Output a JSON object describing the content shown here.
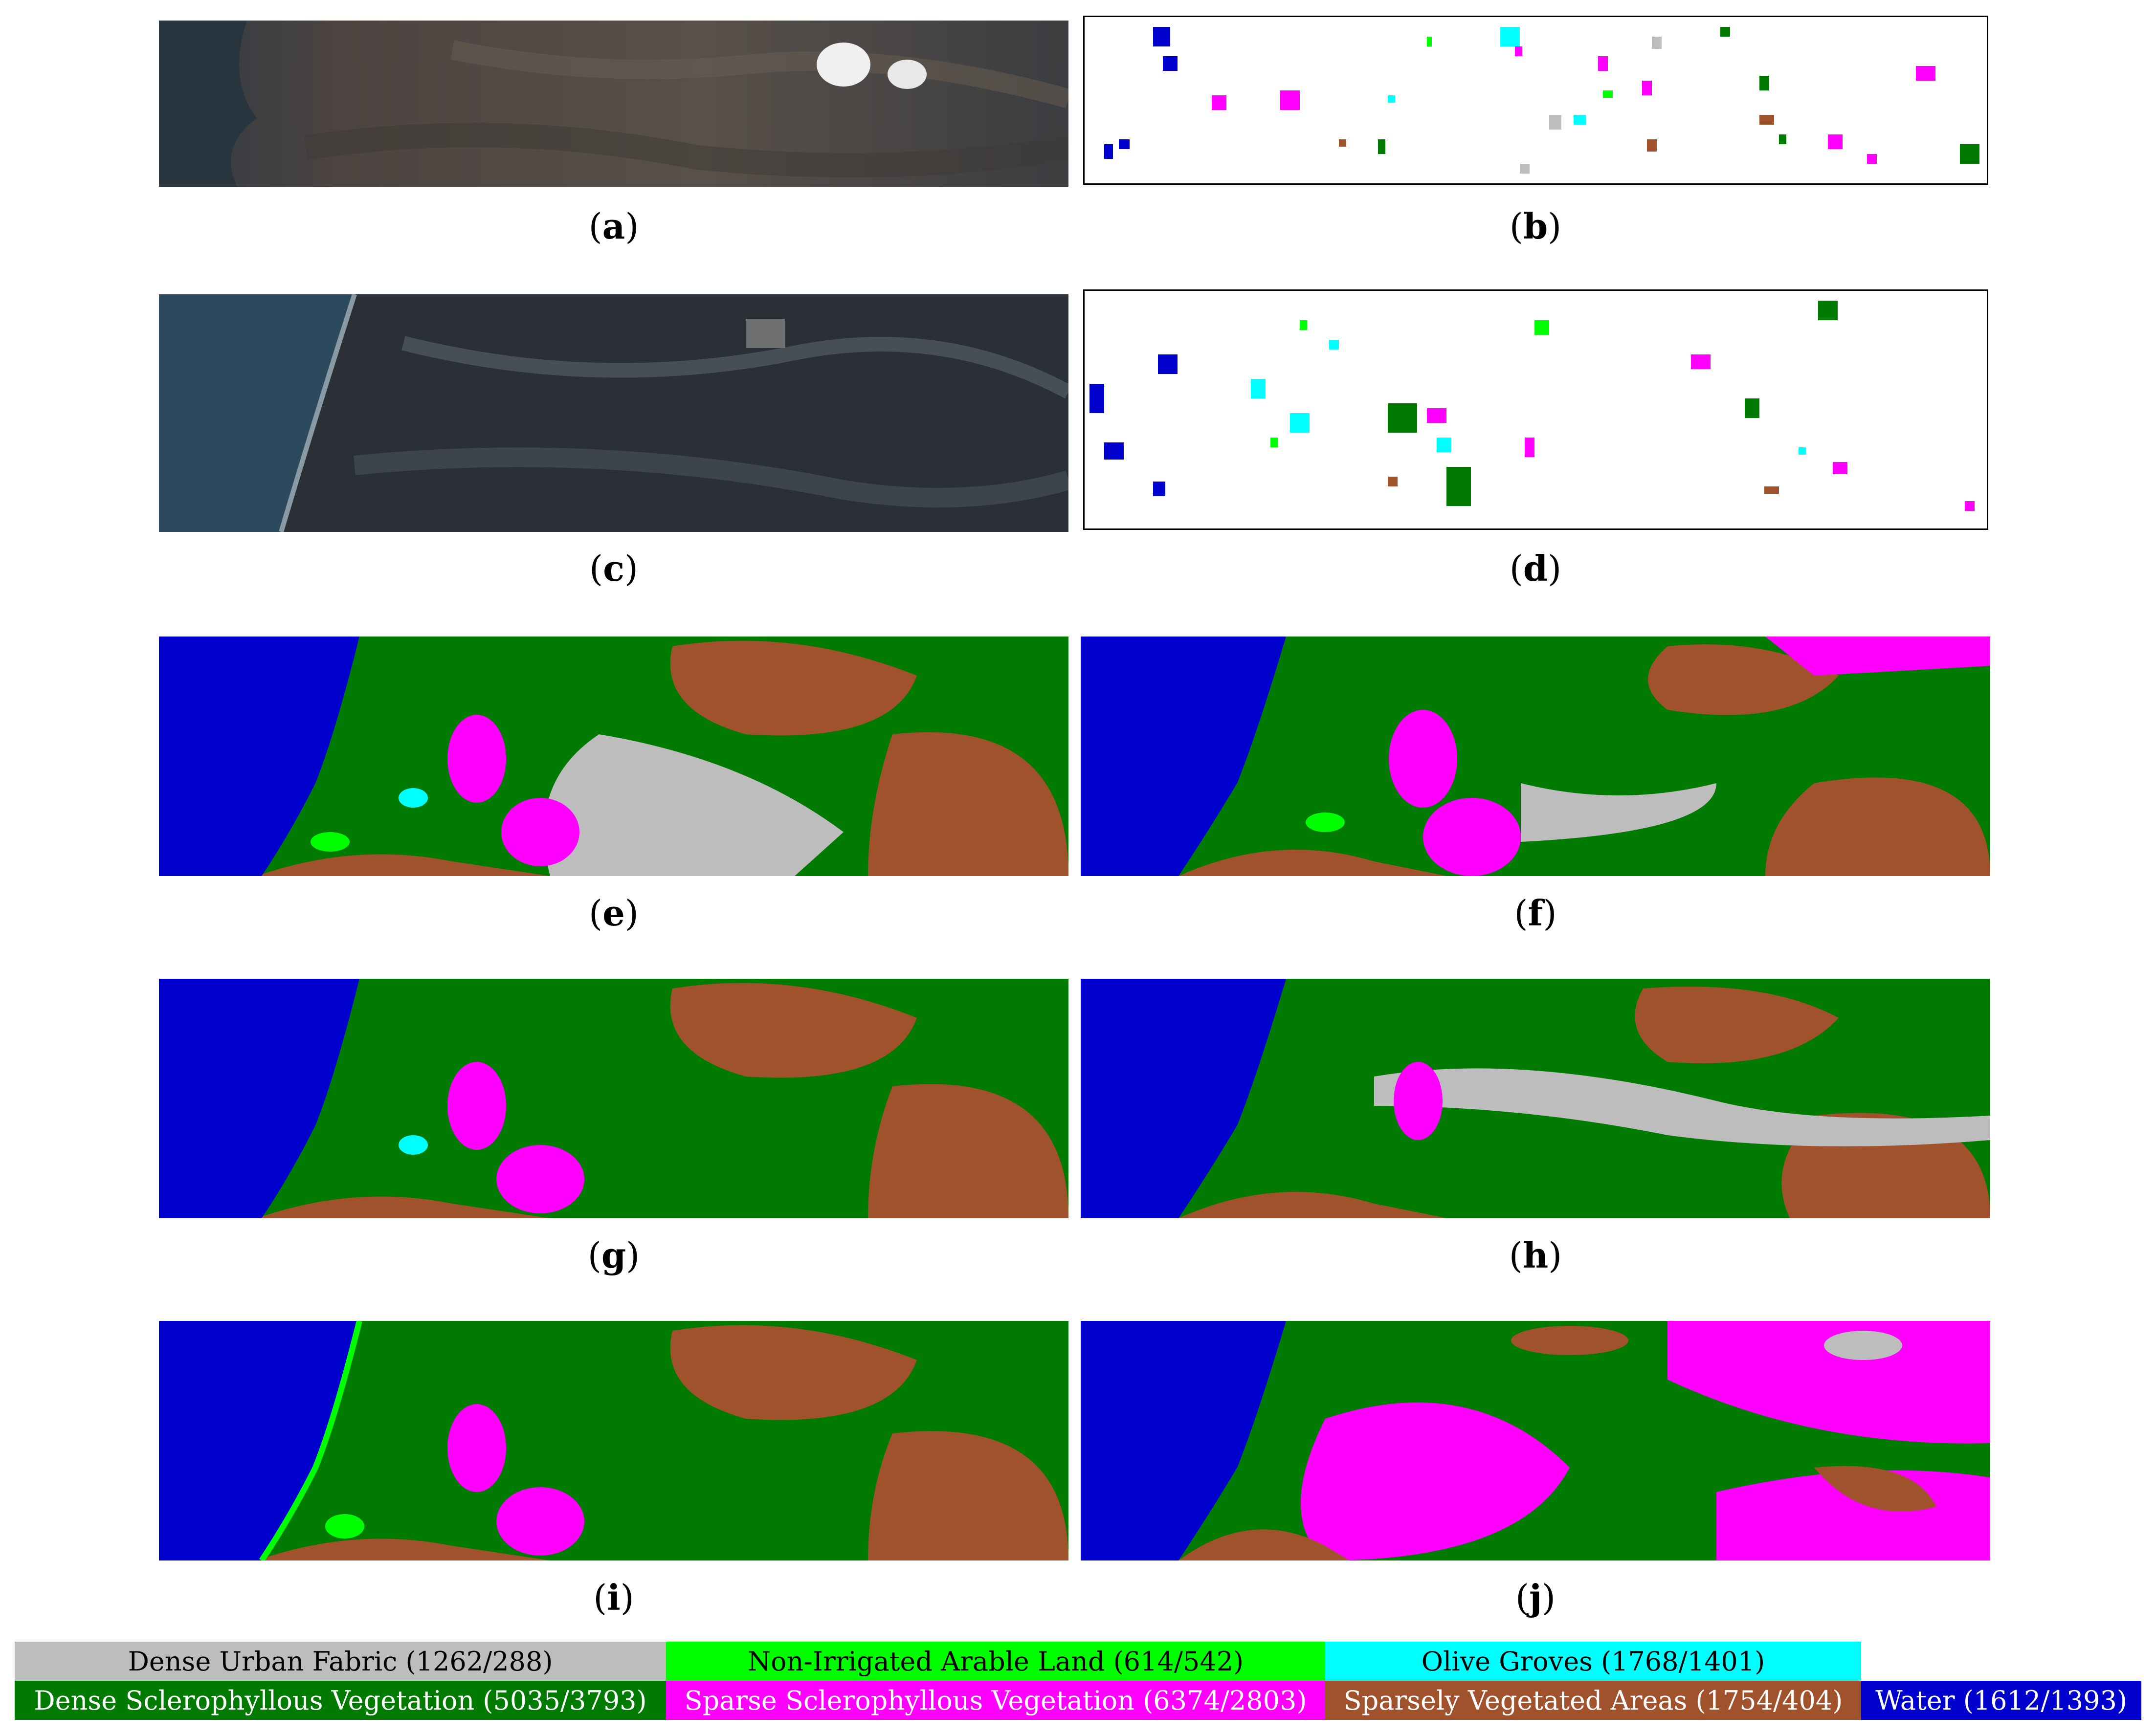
{
  "colors": {
    "dense_urban": "#bdbdbd",
    "non_irrigated": "#00ff00",
    "olive": "#00ffff",
    "dense_scler": "#007a00",
    "sparse_scler": "#ff00ff",
    "sparsely_veg": "#a0522d",
    "water": "#0000cc"
  },
  "panels": [
    {
      "id": "a",
      "kind": "satellite",
      "caption": "a"
    },
    {
      "id": "b",
      "kind": "ground-truth",
      "caption": "b"
    },
    {
      "id": "c",
      "kind": "satellite",
      "caption": "c"
    },
    {
      "id": "d",
      "kind": "ground-truth",
      "caption": "d"
    },
    {
      "id": "e",
      "kind": "classification-map",
      "caption": "e"
    },
    {
      "id": "f",
      "kind": "classification-map",
      "caption": "f"
    },
    {
      "id": "g",
      "kind": "classification-map",
      "caption": "g"
    },
    {
      "id": "h",
      "kind": "classification-map",
      "caption": "h"
    },
    {
      "id": "i",
      "kind": "classification-map",
      "caption": "i"
    },
    {
      "id": "j",
      "kind": "classification-map",
      "caption": "j"
    }
  ],
  "legend": [
    {
      "label": "Dense Urban Fabric (1262/288)",
      "color": "#bdbdbd",
      "text_color": "#000000"
    },
    {
      "label": "Non-Irrigated Arable Land (614/542)",
      "color": "#00ff00",
      "text_color": "#000000"
    },
    {
      "label": "Olive Groves (1768/1401)",
      "color": "#00ffff",
      "text_color": "#000000"
    },
    {
      "label": "Dense Sclerophyllous Vegetation (5035/3793)",
      "color": "#007a00",
      "text_color": "#ffffff"
    },
    {
      "label": "Sparse Sclerophyllous Vegetation (6374/2803)",
      "color": "#ff00ff",
      "text_color": "#ffffff"
    },
    {
      "label": "Sparsely Vegetated Areas (1754/404)",
      "color": "#a0522d",
      "text_color": "#ffffff"
    },
    {
      "label": "Water (1612/1393)",
      "color": "#0000cc",
      "text_color": "#ffffff"
    }
  ]
}
